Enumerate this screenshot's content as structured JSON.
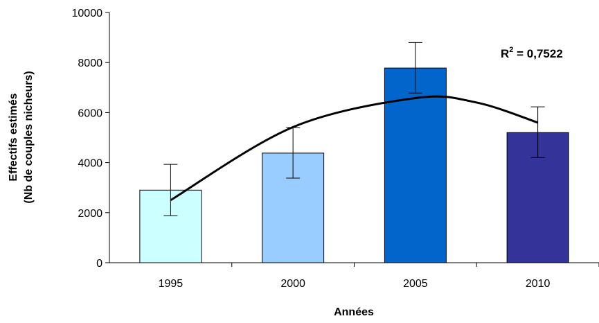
{
  "chart_data": {
    "type": "bar",
    "categories": [
      "1995",
      "2000",
      "2005",
      "2010"
    ],
    "values": [
      2900,
      4380,
      7780,
      5200
    ],
    "error_low": [
      1880,
      3380,
      6780,
      4200
    ],
    "error_high": [
      3930,
      5400,
      8800,
      6230
    ],
    "bar_colors": [
      "#ccffff",
      "#99ccff",
      "#0066cc",
      "#333399"
    ],
    "trendline": {
      "type": "polynomial",
      "points": [
        [
          1995,
          2500
        ],
        [
          2000,
          5420
        ],
        [
          2005,
          6580
        ],
        [
          2007.5,
          6400
        ],
        [
          2010,
          5600
        ]
      ],
      "label_prefix": "R",
      "label_sup": "2",
      "label_suffix": " = 0,7522"
    },
    "ylim": [
      0,
      10000
    ],
    "yticks": [
      "0",
      "2000",
      "4000",
      "6000",
      "8000",
      "10000"
    ],
    "xlabel": "Années",
    "ylabel_line1": "Effectifs estimés",
    "ylabel_line2": "(Nb de couples nicheurs)",
    "grid": false,
    "legend": "none"
  }
}
